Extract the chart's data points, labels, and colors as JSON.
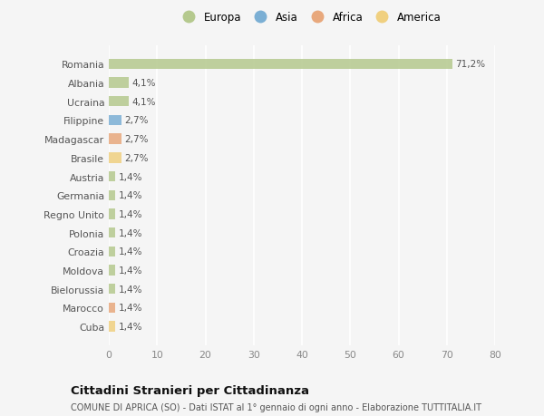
{
  "countries": [
    "Romania",
    "Albania",
    "Ucraina",
    "Filippine",
    "Madagascar",
    "Brasile",
    "Austria",
    "Germania",
    "Regno Unito",
    "Polonia",
    "Croazia",
    "Moldova",
    "Bielorussia",
    "Marocco",
    "Cuba"
  ],
  "values": [
    71.2,
    4.1,
    4.1,
    2.7,
    2.7,
    2.7,
    1.4,
    1.4,
    1.4,
    1.4,
    1.4,
    1.4,
    1.4,
    1.4,
    1.4
  ],
  "labels": [
    "71,2%",
    "4,1%",
    "4,1%",
    "2,7%",
    "2,7%",
    "2,7%",
    "1,4%",
    "1,4%",
    "1,4%",
    "1,4%",
    "1,4%",
    "1,4%",
    "1,4%",
    "1,4%",
    "1,4%"
  ],
  "continents": [
    "Europa",
    "Europa",
    "Europa",
    "Asia",
    "Africa",
    "America",
    "Europa",
    "Europa",
    "Europa",
    "Europa",
    "Europa",
    "Europa",
    "Europa",
    "Africa",
    "America"
  ],
  "colors": {
    "Europa": "#b5c98e",
    "Asia": "#7bafd4",
    "Africa": "#e8a87c",
    "America": "#f0d080"
  },
  "xlim": [
    0,
    80
  ],
  "xticks": [
    0,
    10,
    20,
    30,
    40,
    50,
    60,
    70,
    80
  ],
  "title": "Cittadini Stranieri per Cittadinanza",
  "subtitle": "COMUNE DI APRICA (SO) - Dati ISTAT al 1° gennaio di ogni anno - Elaborazione TUTTITALIA.IT",
  "background_color": "#f5f5f5",
  "grid_color": "#ffffff",
  "legend_order": [
    "Europa",
    "Asia",
    "Africa",
    "America"
  ]
}
